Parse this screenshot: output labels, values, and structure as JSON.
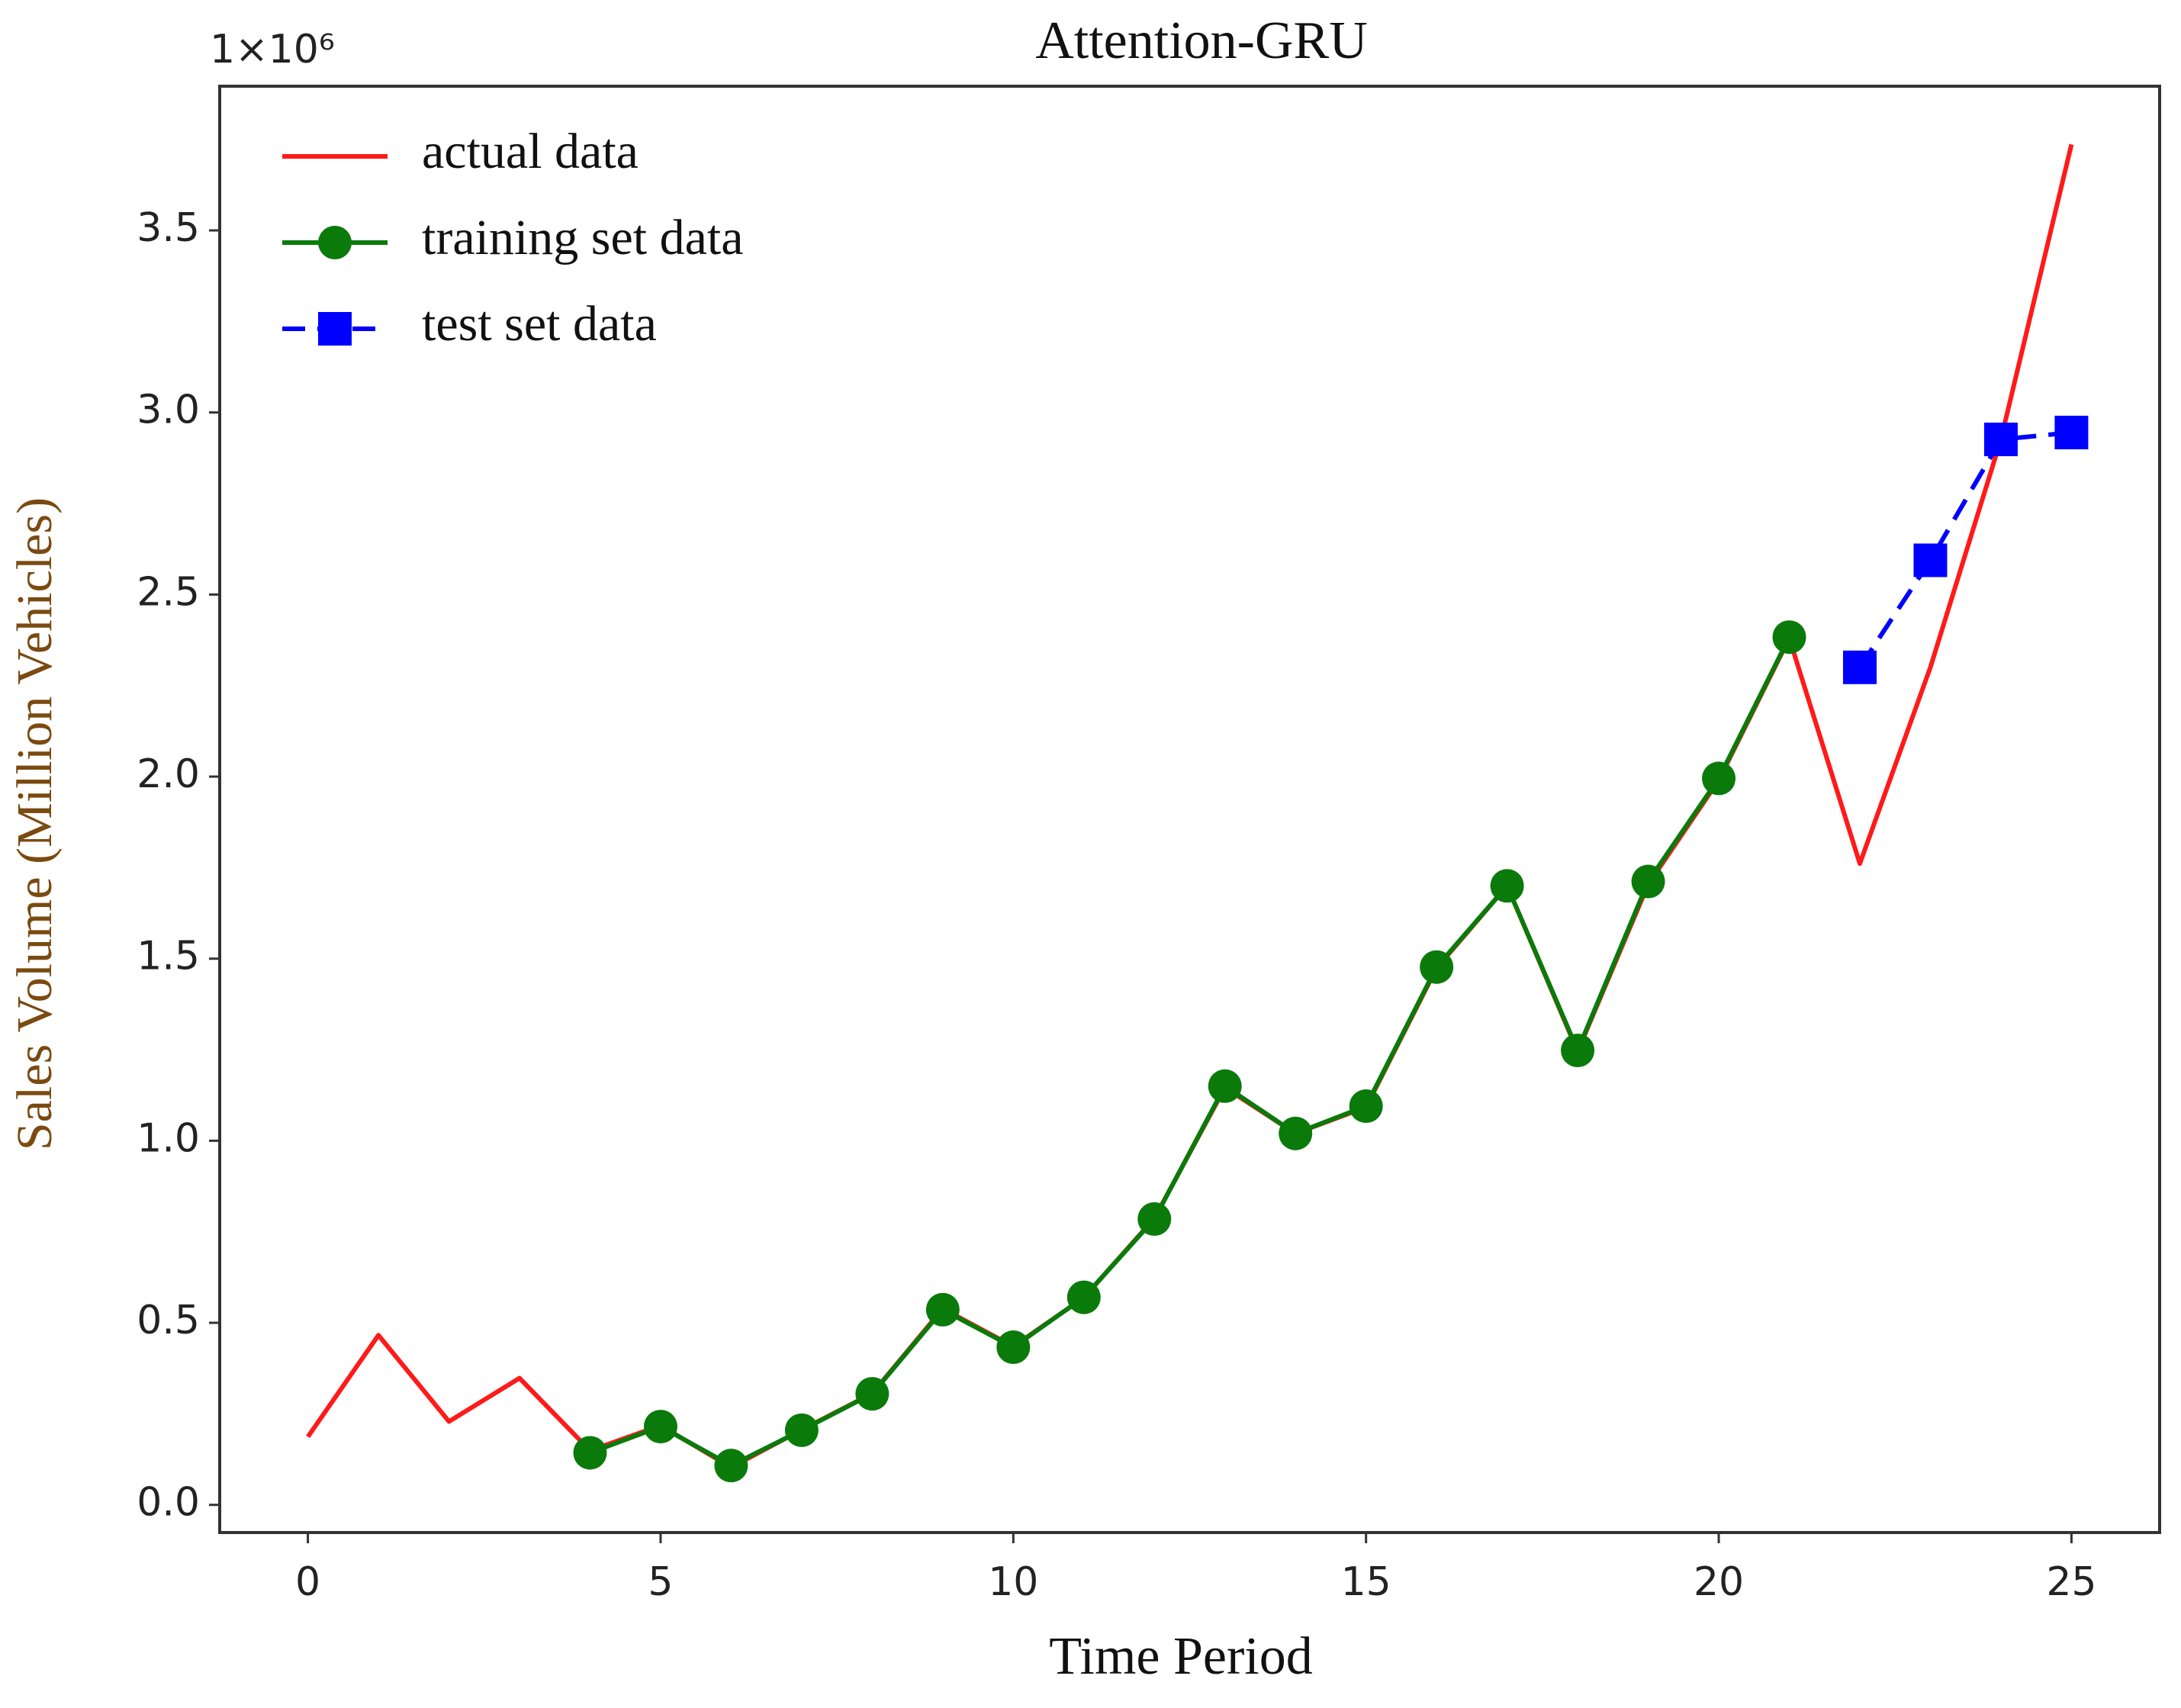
{
  "chart_data": {
    "type": "line",
    "title": "Attention-GRU",
    "xlabel": "Time Period",
    "ylabel": "Sales Volume (Million Vehicles)",
    "offset_text": "1×10⁶",
    "xlim": [
      -1.25,
      26.25
    ],
    "ylim": [
      -0.076,
      3.896
    ],
    "xticks": [
      0,
      5,
      10,
      15,
      20,
      25
    ],
    "yticks": [
      {
        "value": 0,
        "label": "0.0"
      },
      0.5,
      {
        "value": 1,
        "label": "1.0"
      },
      1.5,
      {
        "value": 2,
        "label": "2.0"
      },
      2.5,
      {
        "value": 3,
        "label": "3.0"
      },
      3.5
    ],
    "legend": "upper left",
    "series": [
      {
        "name": "actual data",
        "color": "#ff1a1a",
        "marker": "none",
        "linestyle": "solid",
        "x": [
          0,
          1,
          2,
          3,
          4,
          5,
          6,
          7,
          8,
          9,
          10,
          11,
          12,
          13,
          14,
          15,
          16,
          17,
          18,
          19,
          20,
          21,
          22,
          23,
          24,
          25
        ],
        "values": [
          0.187,
          0.466,
          0.229,
          0.348,
          0.149,
          0.218,
          0.103,
          0.206,
          0.306,
          0.539,
          0.435,
          0.569,
          0.787,
          1.146,
          1.02,
          1.092,
          1.474,
          1.7,
          1.245,
          1.704,
          1.99,
          2.38,
          1.761,
          2.3,
          2.926,
          3.736
        ]
      },
      {
        "name": "training set data",
        "color": "#0a7a0a",
        "marker": "circle",
        "linestyle": "solid",
        "x": [
          4,
          5,
          6,
          7,
          8,
          9,
          10,
          11,
          12,
          13,
          14,
          15,
          16,
          17,
          18,
          19,
          20,
          21
        ],
        "values": [
          0.143,
          0.215,
          0.108,
          0.205,
          0.305,
          0.536,
          0.433,
          0.57,
          0.785,
          1.15,
          1.02,
          1.095,
          1.477,
          1.7,
          1.248,
          1.712,
          1.995,
          2.383
        ]
      },
      {
        "name": "test set data",
        "color": "#0000ff",
        "marker": "square",
        "linestyle": "dashed",
        "x": [
          22,
          23,
          24,
          25
        ],
        "values": [
          2.3,
          2.594,
          2.926,
          2.945
        ]
      }
    ]
  }
}
